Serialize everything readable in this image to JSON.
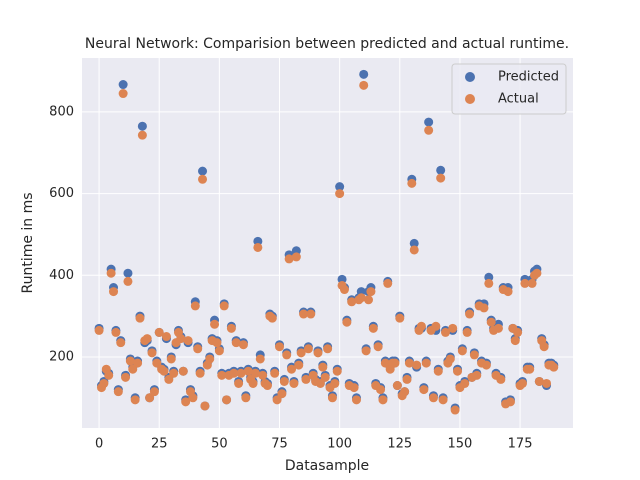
{
  "chart_data": {
    "type": "scatter",
    "title": "Neural Network: Comparision between predicted and actual runtime.",
    "x_label": "Datasample",
    "y_label": "Runtime in ms",
    "xlim": [
      -7.1,
      197
    ],
    "ylim": [
      26,
      932
    ],
    "xticks": [
      0,
      25,
      50,
      75,
      100,
      125,
      150,
      175
    ],
    "yticks": [
      200,
      400,
      600,
      800
    ],
    "grid": true,
    "legend": "upper right",
    "x": [
      0,
      1,
      2,
      3,
      4,
      5,
      6,
      7,
      8,
      9,
      10,
      11,
      12,
      13,
      14,
      15,
      16,
      17,
      18,
      19,
      20,
      21,
      22,
      23,
      24,
      25,
      26,
      27,
      28,
      29,
      30,
      31,
      32,
      33,
      34,
      35,
      36,
      37,
      38,
      39,
      40,
      41,
      42,
      43,
      44,
      45,
      46,
      47,
      48,
      49,
      50,
      51,
      52,
      53,
      54,
      55,
      56,
      57,
      58,
      59,
      60,
      61,
      62,
      63,
      64,
      65,
      66,
      67,
      68,
      69,
      70,
      71,
      72,
      73,
      74,
      75,
      76,
      77,
      78,
      79,
      80,
      81,
      82,
      83,
      84,
      85,
      86,
      87,
      88,
      89,
      90,
      91,
      92,
      93,
      94,
      95,
      96,
      97,
      98,
      99,
      100,
      101,
      102,
      103,
      104,
      105,
      106,
      107,
      108,
      109,
      110,
      111,
      112,
      113,
      114,
      115,
      116,
      117,
      118,
      119,
      120,
      121,
      122,
      123,
      124,
      125,
      126,
      127,
      128,
      129,
      130,
      131,
      132,
      133,
      134,
      135,
      136,
      137,
      138,
      139,
      140,
      141,
      142,
      143,
      144,
      145,
      146,
      147,
      148,
      149,
      150,
      151,
      152,
      153,
      154,
      155,
      156,
      157,
      158,
      159,
      160,
      161,
      162,
      163,
      164,
      165,
      166,
      167,
      168,
      169,
      170,
      171,
      172,
      173,
      174,
      175,
      176,
      177,
      178,
      179,
      180,
      181,
      182,
      183,
      184,
      185,
      186,
      187,
      188,
      189
    ],
    "series": [
      {
        "name": "Predicted",
        "color": "#4c72b0",
        "values": [
          270,
          130,
          140,
          165,
          160,
          415,
          370,
          265,
          120,
          240,
          867,
          155,
          405,
          195,
          175,
          100,
          190,
          300,
          765,
          235,
          240,
          100,
          215,
          120,
          190,
          260,
          175,
          170,
          245,
          150,
          200,
          165,
          230,
          265,
          250,
          165,
          95,
          235,
          120,
          105,
          335,
          225,
          165,
          655,
          80,
          185,
          200,
          245,
          290,
          240,
          220,
          160,
          330,
          95,
          160,
          275,
          165,
          240,
          140,
          165,
          235,
          105,
          170,
          150,
          140,
          165,
          483,
          205,
          160,
          140,
          135,
          305,
          300,
          165,
          100,
          230,
          115,
          145,
          210,
          450,
          175,
          140,
          460,
          185,
          215,
          310,
          150,
          225,
          310,
          160,
          145,
          215,
          140,
          180,
          155,
          225,
          130,
          105,
          140,
          170,
          617,
          390,
          370,
          290,
          135,
          340,
          130,
          100,
          345,
          360,
          892,
          220,
          360,
          370,
          275,
          135,
          230,
          125,
          100,
          190,
          385,
          175,
          190,
          190,
          130,
          300,
          110,
          115,
          150,
          190,
          635,
          478,
          175,
          270,
          270,
          125,
          190,
          775,
          270,
          105,
          265,
          170,
          657,
          100,
          265,
          190,
          200,
          265,
          75,
          170,
          130,
          220,
          140,
          265,
          310,
          150,
          210,
          160,
          330,
          190,
          330,
          185,
          395,
          290,
          270,
          160,
          280,
          150,
          370,
          90,
          370,
          95,
          270,
          245,
          265,
          135,
          140,
          390,
          175,
          175,
          390,
          410,
          415,
          140,
          245,
          230,
          130,
          185,
          185,
          180
        ]
      },
      {
        "name": "Actual",
        "color": "#dd8452",
        "values": [
          265,
          125,
          135,
          170,
          155,
          405,
          360,
          260,
          115,
          235,
          845,
          150,
          385,
          190,
          170,
          95,
          185,
          295,
          743,
          240,
          245,
          100,
          210,
          115,
          185,
          260,
          170,
          165,
          250,
          145,
          195,
          160,
          235,
          260,
          245,
          165,
          90,
          240,
          115,
          100,
          325,
          220,
          160,
          635,
          80,
          180,
          195,
          240,
          280,
          235,
          215,
          155,
          325,
          95,
          155,
          270,
          160,
          235,
          135,
          160,
          230,
          100,
          165,
          145,
          135,
          160,
          468,
          195,
          155,
          135,
          130,
          300,
          295,
          160,
          95,
          225,
          110,
          140,
          205,
          440,
          170,
          135,
          445,
          180,
          210,
          305,
          145,
          220,
          305,
          155,
          140,
          210,
          135,
          175,
          150,
          220,
          125,
          100,
          135,
          165,
          600,
          375,
          365,
          285,
          130,
          335,
          125,
          95,
          340,
          345,
          865,
          215,
          340,
          360,
          270,
          130,
          225,
          120,
          95,
          185,
          380,
          170,
          185,
          185,
          130,
          295,
          105,
          115,
          145,
          185,
          625,
          462,
          180,
          265,
          275,
          120,
          185,
          755,
          265,
          100,
          275,
          165,
          638,
          95,
          260,
          185,
          195,
          270,
          70,
          165,
          125,
          215,
          135,
          260,
          305,
          150,
          205,
          155,
          325,
          185,
          320,
          180,
          380,
          285,
          265,
          155,
          270,
          145,
          365,
          85,
          360,
          90,
          270,
          240,
          260,
          130,
          135,
          380,
          170,
          170,
          380,
          400,
          405,
          140,
          240,
          225,
          135,
          180,
          180,
          175
        ]
      }
    ]
  }
}
